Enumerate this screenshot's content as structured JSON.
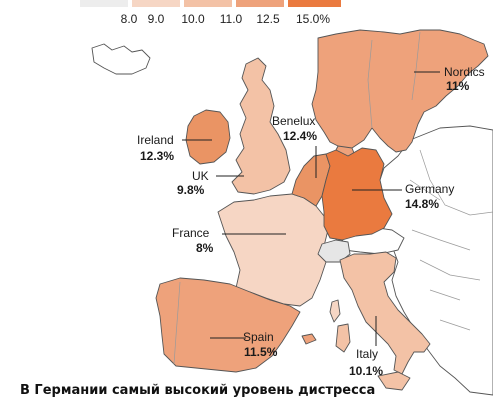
{
  "colors": {
    "lightest": "#ededed",
    "c9": "#f6d6c4",
    "c10": "#f3c2a6",
    "c11": "#eea27b",
    "c12_5": "#ea9464",
    "c15": "#ea7a3f",
    "other_land": "#ffffff",
    "switzerland": "#e6e6e6"
  },
  "legend": {
    "ticks": [
      "8.0",
      "9.0",
      "10.0",
      "11.0",
      "12.5",
      "15.0%"
    ]
  },
  "regions": {
    "nordics": {
      "name": "Nordics",
      "value": "11%",
      "color": "#eea27b"
    },
    "ireland": {
      "name": "Ireland",
      "value": "12.3%",
      "color": "#ea9464"
    },
    "uk": {
      "name": "UK",
      "value": "9.8%",
      "color": "#f3c2a6"
    },
    "benelux": {
      "name": "Benelux",
      "value": "12.4%",
      "color": "#ea9464"
    },
    "germany": {
      "name": "Germany",
      "value": "14.8%",
      "color": "#ea7a3f"
    },
    "france": {
      "name": "France",
      "value": "8%",
      "color": "#f6d6c4"
    },
    "spain": {
      "name": "Spain",
      "value": "11.5%",
      "color": "#eea27b"
    },
    "italy": {
      "name": "Italy",
      "value": "10.1%",
      "color": "#f3c2a6"
    }
  },
  "caption": "В Германии самый высокий уровень дистресса"
}
